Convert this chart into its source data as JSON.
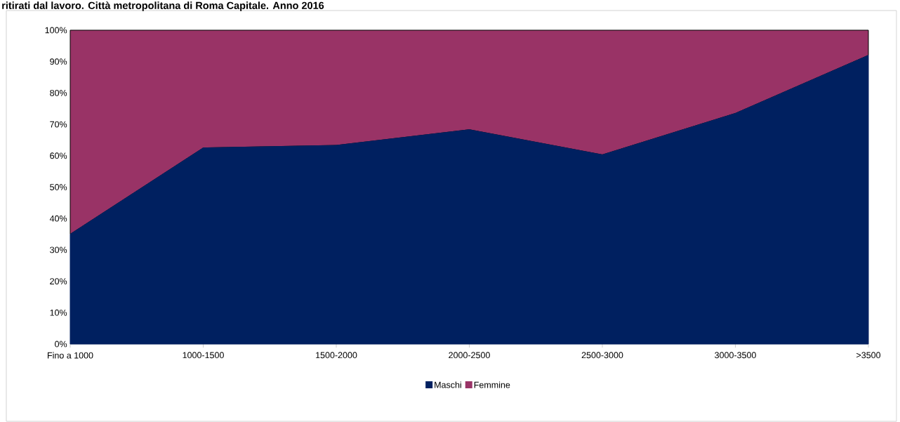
{
  "chart_data": {
    "type": "area",
    "title": "ritirati dal lavoro. Città metropolitana di Roma Capitale. Anno 2016",
    "categories": [
      "Fino a 1000",
      "1000-1500",
      "1500-2000",
      "2000-2500",
      "2500-3000",
      "3000-3500",
      ">3500"
    ],
    "series": [
      {
        "name": "Maschi",
        "color": "#002060",
        "values": [
          35,
          62.5,
          63.3,
          68.3,
          60.3,
          73.5,
          92
        ]
      },
      {
        "name": "Femmine",
        "color": "#993366",
        "values": [
          65,
          37.5,
          36.7,
          31.7,
          39.7,
          26.5,
          8
        ]
      }
    ],
    "stacked": true,
    "ylim": [
      0,
      100
    ],
    "yticks": [
      {
        "value": 0,
        "label": "0%"
      },
      {
        "value": 10,
        "label": "10%"
      },
      {
        "value": 20,
        "label": "20%"
      },
      {
        "value": 30,
        "label": "30%"
      },
      {
        "value": 40,
        "label": "40%"
      },
      {
        "value": 50,
        "label": "50%"
      },
      {
        "value": 60,
        "label": "60%"
      },
      {
        "value": 70,
        "label": "70%"
      },
      {
        "value": 80,
        "label": "80%"
      },
      {
        "value": 90,
        "label": "90%"
      },
      {
        "value": 100,
        "label": "100%"
      }
    ],
    "legend": "bottom",
    "grid": false
  }
}
